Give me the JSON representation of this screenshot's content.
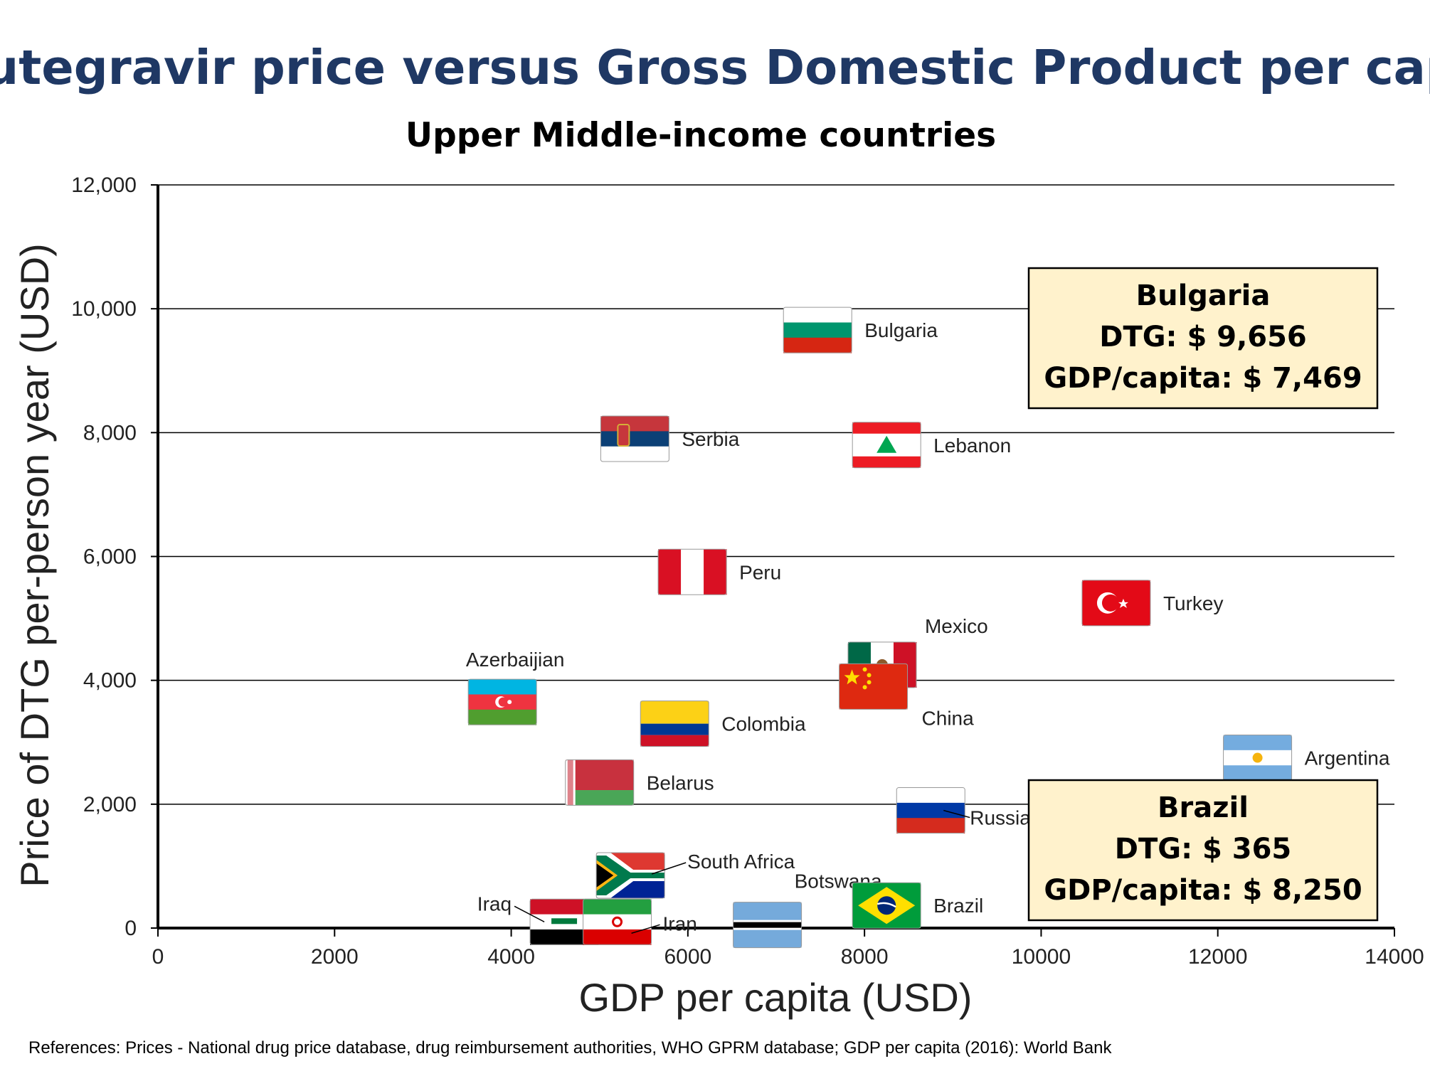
{
  "title": "Dolutegravir price versus Gross Domestic Product per capita",
  "subtitle": "Upper Middle-income countries",
  "reference": "References: Prices - National drug price database, drug reimbursement authorities, WHO GPRM database; GDP per capita (2016): World Bank",
  "colors": {
    "title": "#1f3864",
    "grid": "#000000",
    "callout_bg": "#fff2cc",
    "callout_border": "#000000"
  },
  "chart_data": {
    "type": "scatter",
    "xlabel": "GDP per capita (USD)",
    "ylabel": "Price of DTG per-person year (USD)",
    "xlim": [
      0,
      14000
    ],
    "ylim": [
      0,
      12000
    ],
    "x_ticks": [
      "0",
      "2000",
      "4000",
      "6000",
      "8000",
      "10000",
      "12000",
      "14000"
    ],
    "y_ticks": [
      "0",
      "2,000",
      "4,000",
      "6,000",
      "8,000",
      "10,000",
      "12,000"
    ],
    "grid": "horizontal",
    "points": [
      {
        "name": "Bulgaria",
        "x": 7469,
        "y": 9656,
        "flag": "bulgaria-flag"
      },
      {
        "name": "Serbia",
        "x": 5400,
        "y": 7900,
        "flag": "serbia-flag"
      },
      {
        "name": "Lebanon",
        "x": 8250,
        "y": 7800,
        "flag": "lebanon-flag"
      },
      {
        "name": "Peru",
        "x": 6050,
        "y": 5750,
        "flag": "peru-flag"
      },
      {
        "name": "Turkey",
        "x": 10850,
        "y": 5250,
        "flag": "turkey-flag"
      },
      {
        "name": "Mexico",
        "x": 8200,
        "y": 4250,
        "flag": "mexico-flag"
      },
      {
        "name": "China",
        "x": 8100,
        "y": 3900,
        "flag": "china-flag"
      },
      {
        "name": "Azerbaijian",
        "x": 3900,
        "y": 3650,
        "flag": "azerbaijan-flag"
      },
      {
        "name": "Colombia",
        "x": 5850,
        "y": 3300,
        "flag": "colombia-flag"
      },
      {
        "name": "Argentina",
        "x": 12450,
        "y": 2750,
        "flag": "argentina-flag"
      },
      {
        "name": "Belarus",
        "x": 5000,
        "y": 2350,
        "flag": "belarus-flag"
      },
      {
        "name": "Russia",
        "x": 8750,
        "y": 1900,
        "flag": "russia-flag"
      },
      {
        "name": "South Africa",
        "x": 5350,
        "y": 850,
        "flag": "south-africa-flag"
      },
      {
        "name": "Botswana",
        "x": 6900,
        "y": 50,
        "flag": "botswana-flag"
      },
      {
        "name": "Brazil",
        "x": 8250,
        "y": 365,
        "flag": "brazil-flag"
      },
      {
        "name": "Iraq",
        "x": 4600,
        "y": 100,
        "flag": "iraq-flag"
      },
      {
        "name": "Iran",
        "x": 5200,
        "y": 100,
        "flag": "iran-flag"
      }
    ],
    "callouts": [
      {
        "country": "Bulgaria",
        "dtg": "DTG: $ 9,656",
        "gdp": "GDP/capita: $ 7,469"
      },
      {
        "country": "Brazil",
        "dtg": "DTG: $ 365",
        "gdp": "GDP/capita: $ 8,250"
      }
    ]
  }
}
